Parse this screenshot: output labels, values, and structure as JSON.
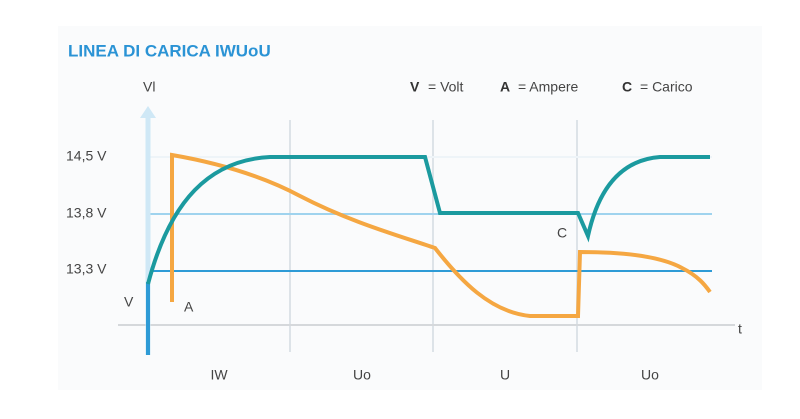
{
  "header": {
    "title": "LINEA DI CARICA IWUoU"
  },
  "axis": {
    "y_label": "Vl",
    "x_label": "t"
  },
  "legend": [
    {
      "key": "V",
      "text": "= Volt"
    },
    {
      "key": "A",
      "text": "= Ampere"
    },
    {
      "key": "C",
      "text": "= Carico"
    }
  ],
  "levels": [
    "14,5 V",
    "13,8 V",
    "13,3 V"
  ],
  "curve_labels": {
    "voltage": "V",
    "current": "A",
    "load": "C"
  },
  "phases": [
    "IW",
    "Uo",
    "U",
    "Uo"
  ]
}
